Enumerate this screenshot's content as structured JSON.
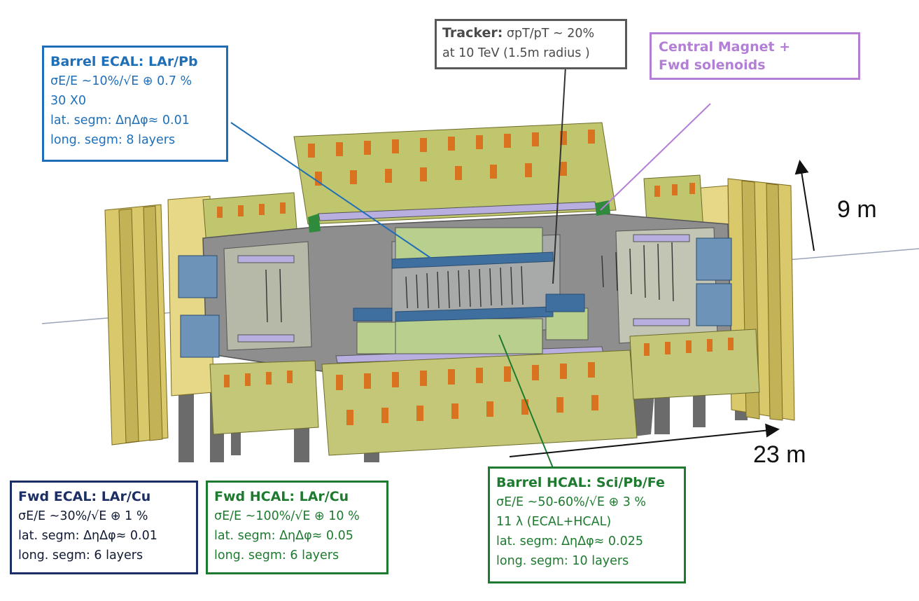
{
  "labels": {
    "barrel_ecal": {
      "title": "Barrel ECAL: LAr/Pb",
      "lines": [
        "σE/E ~10%/√E ⊕ 0.7 %",
        "30 X0",
        "lat. segm: ΔηΔφ≈ 0.01",
        "long. segm: 8 layers"
      ]
    },
    "tracker": {
      "title": "Tracker:",
      "title_rest": " σpT/pT ~ 20%",
      "lines": [
        "at 10 TeV  (1.5m radius )"
      ]
    },
    "central_magnet": {
      "lines": [
        "Central Magnet +",
        "Fwd solenoids"
      ]
    },
    "fwd_ecal": {
      "title": "Fwd ECAL: LAr/Cu",
      "lines": [
        "σE/E ~30%/√E ⊕ 1 %",
        "lat. segm: ΔηΔφ≈ 0.01",
        "long. segm: 6 layers"
      ]
    },
    "fwd_hcal": {
      "title": "Fwd HCAL: LAr/Cu",
      "lines": [
        "σE/E ~100%/√E ⊕ 10 %",
        "lat. segm: ΔηΔφ≈ 0.05",
        "long. segm: 6 layers"
      ]
    },
    "barrel_hcal": {
      "title": "Barrel HCAL: Sci/Pb/Fe",
      "lines": [
        "σE/E ~50-60%/√E ⊕ 3 %",
        "11 λ (ECAL+HCAL)",
        "lat. segm: ΔηΔφ≈ 0.025",
        "long. segm: 10 layers"
      ]
    }
  },
  "dimensions": {
    "height": "9 m",
    "length": "23 m"
  },
  "colors": {
    "ecal_blue": "#1f6fb8",
    "fwd_ecal_navy": "#1b2f66",
    "hcal_green": "#1d7a2e",
    "tracker_gray": "#595959",
    "magnet_purple": "#b37fd6",
    "detector_gray": "#8e8e8e",
    "detector_yellow": "#d9c96a",
    "module_orange": "#d9731f",
    "calorimeter_green": "#b8cf8e",
    "ecal_fill": "#3f6f9f",
    "magnet_lavender": "#b8aee0"
  }
}
